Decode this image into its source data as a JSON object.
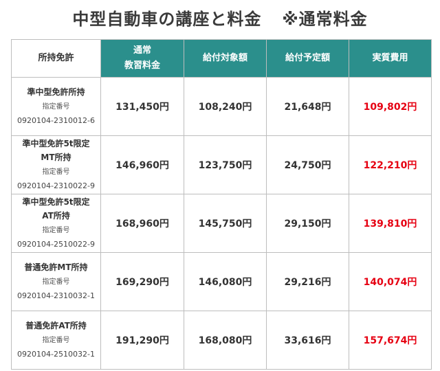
{
  "title": {
    "main": "中型自動車の講座と料金",
    "note": "※通常料金"
  },
  "table": {
    "headers": {
      "license": "所持免許",
      "tuition_line1": "通常",
      "tuition_line2": "教習料金",
      "eligible": "給付対象額",
      "benefit": "給付予定額",
      "actual": "実質費用"
    },
    "rows": [
      {
        "license_lines": [
          "準中型免許所持"
        ],
        "designation_label": "指定番号",
        "designation_code": "0920104-2310012-6",
        "tuition": "131,450円",
        "eligible": "108,240円",
        "benefit": "21,648円",
        "actual": "109,802円"
      },
      {
        "license_lines": [
          "準中型免許5t限定",
          "MT所持"
        ],
        "designation_label": "指定番号",
        "designation_code": "0920104-2310022-9",
        "tuition": "146,960円",
        "eligible": "123,750円",
        "benefit": "24,750円",
        "actual": "122,210円"
      },
      {
        "license_lines": [
          "準中型免許5t限定",
          "AT所持"
        ],
        "designation_label": "指定番号",
        "designation_code": "0920104-2510022-9",
        "tuition": "168,960円",
        "eligible": "145,750円",
        "benefit": "29,150円",
        "actual": "139,810円"
      },
      {
        "license_lines": [
          "普通免許MT所持"
        ],
        "designation_label": "指定番号",
        "designation_code": "0920104-2310032-1",
        "tuition": "169,290円",
        "eligible": "146,080円",
        "benefit": "29,216円",
        "actual": "140,074円"
      },
      {
        "license_lines": [
          "普通免許AT所持"
        ],
        "designation_label": "指定番号",
        "designation_code": "0920104-2510032-1",
        "tuition": "191,290円",
        "eligible": "168,080円",
        "benefit": "33,616円",
        "actual": "157,674円"
      }
    ]
  },
  "colors": {
    "header_teal": "#2b8f8c",
    "actual_cost_red": "#e60012",
    "border": "#bdbdbd",
    "text": "#333333"
  }
}
